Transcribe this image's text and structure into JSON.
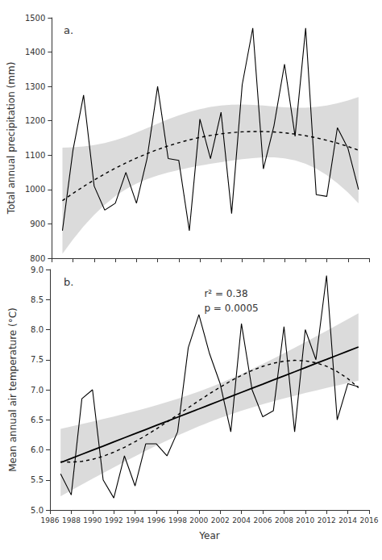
{
  "chart_data": [
    {
      "type": "line",
      "title": "a.",
      "ylabel": "Total annual precipitation (mm)",
      "x": [
        1987,
        1988,
        1989,
        1990,
        1991,
        1992,
        1993,
        1994,
        1995,
        1996,
        1997,
        1998,
        1999,
        2000,
        2001,
        2002,
        2003,
        2004,
        2005,
        2006,
        2007,
        2008,
        2009,
        2010,
        2011,
        2012,
        2013,
        2014,
        2015
      ],
      "series": [
        {
          "type": "line",
          "color": "black",
          "line_style": "dashed",
          "values": [
            967.5,
            988.8,
            1008.9,
            1027.8,
            1045.5,
            1062.1,
            1077.4,
            1091.6,
            1104.5,
            1116.3,
            1126.9,
            1136.3,
            1144.6,
            1151.6,
            1157.4,
            1162.1,
            1165.6,
            1167.8,
            1168.9,
            1168.8,
            1167.6,
            1165.1,
            1161.4,
            1156.6,
            1150.6,
            1143.3,
            1134.9,
            1125.3,
            1114.5
          ]
        },
        {
          "type": "line",
          "color": "black",
          "line_style": "solid",
          "values": [
            880,
            1115,
            1275,
            1010,
            940,
            960,
            1050,
            960,
            1090,
            1300,
            1090,
            1085,
            880,
            1205,
            1090,
            1225,
            930,
            1305,
            1470,
            1060,
            1185,
            1365,
            1155,
            1470,
            985,
            980,
            1180,
            1120,
            1000
          ]
        }
      ],
      "band": {
        "color": "#cccccc",
        "lower": [
          813.0,
          854.7,
          892.6,
          926.3,
          955.7,
          980.6,
          1001.0,
          1017.4,
          1030.4,
          1040.9,
          1049.5,
          1056.9,
          1063.4,
          1069.3,
          1074.7,
          1079.8,
          1084.4,
          1088.4,
          1091.5,
          1093.4,
          1093.4,
          1090.9,
          1085.0,
          1075.1,
          1060.7,
          1041.8,
          1018.6,
          991.2,
          960.0
        ],
        "upper": [
          1122.0,
          1122.9,
          1125.2,
          1129.3,
          1135.4,
          1143.6,
          1153.8,
          1165.8,
          1178.7,
          1191.8,
          1204.4,
          1215.8,
          1225.8,
          1233.9,
          1240.2,
          1244.4,
          1246.8,
          1247.3,
          1246.4,
          1244.3,
          1241.7,
          1239.3,
          1237.8,
          1238.1,
          1240.4,
          1244.8,
          1251.3,
          1259.4,
          1269.1
        ]
      },
      "xlim": [
        1986,
        2016
      ],
      "xticks": [
        1986,
        1988,
        1990,
        1992,
        1994,
        1996,
        1998,
        2000,
        2002,
        2004,
        2006,
        2008,
        2010,
        2012,
        2014,
        2016
      ],
      "ylim": [
        800,
        1500
      ],
      "yticks": [
        800,
        900,
        1000,
        1100,
        1200,
        1300,
        1400,
        1500
      ],
      "grid": false,
      "tick_labels": "y"
    },
    {
      "type": "line",
      "title": "b.",
      "xlabel": "Year",
      "ylabel": "Mean annual air temperature (°C)",
      "x": [
        1987,
        1988,
        1989,
        1990,
        1991,
        1992,
        1993,
        1994,
        1995,
        1996,
        1997,
        1998,
        1999,
        2000,
        2001,
        2002,
        2003,
        2004,
        2005,
        2006,
        2007,
        2008,
        2009,
        2010,
        2011,
        2012,
        2013,
        2014,
        2015
      ],
      "series": [
        {
          "type": "line",
          "color": "black",
          "line_style": "dashed",
          "values": [
            5.803,
            5.795,
            5.808,
            5.842,
            5.894,
            5.961,
            6.042,
            6.135,
            6.238,
            6.348,
            6.463,
            6.581,
            6.701,
            6.819,
            6.934,
            7.044,
            7.147,
            7.24,
            7.321,
            7.389,
            7.441,
            7.475,
            7.489,
            7.481,
            7.449,
            7.39,
            7.302,
            7.185,
            7.034
          ]
        },
        {
          "type": "line",
          "color": "black",
          "line_style": "solid",
          "values": [
            5.789,
            5.857,
            5.926,
            5.995,
            6.063,
            6.132,
            6.201,
            6.269,
            6.338,
            6.407,
            6.475,
            6.544,
            6.613,
            6.681,
            6.75,
            6.819,
            6.887,
            6.956,
            7.025,
            7.093,
            7.162,
            7.231,
            7.299,
            7.368,
            7.437,
            7.505,
            7.574,
            7.643,
            7.711
          ]
        },
        {
          "type": "line",
          "color": "black",
          "line_style": "solid",
          "values": [
            5.6,
            5.25,
            6.85,
            7.0,
            5.5,
            5.2,
            5.9,
            5.4,
            6.1,
            6.1,
            5.9,
            6.3,
            7.7,
            8.25,
            7.6,
            7.1,
            6.3,
            8.1,
            7.0,
            6.55,
            6.65,
            8.05,
            6.3,
            8.0,
            7.5,
            8.9,
            6.5,
            7.1,
            7.05
          ]
        }
      ],
      "band": {
        "color": "#cccccc",
        "lower": [
          5.228,
          5.326,
          5.423,
          5.519,
          5.615,
          5.709,
          5.803,
          5.894,
          5.984,
          6.071,
          6.156,
          6.238,
          6.317,
          6.392,
          6.462,
          6.529,
          6.592,
          6.65,
          6.706,
          6.758,
          6.808,
          6.856,
          6.901,
          6.945,
          6.988,
          7.03,
          7.071,
          7.111,
          7.151
        ],
        "upper": [
          6.349,
          6.389,
          6.429,
          6.47,
          6.512,
          6.555,
          6.599,
          6.644,
          6.692,
          6.742,
          6.794,
          6.85,
          6.908,
          6.971,
          7.038,
          7.108,
          7.183,
          7.262,
          7.344,
          7.429,
          7.516,
          7.606,
          7.697,
          7.791,
          7.885,
          7.981,
          8.077,
          8.174,
          8.272
        ]
      },
      "annotations": [
        {
          "text": "r² = 0.38\np = 0.0005",
          "x": 2000.5,
          "y": 8.72
        }
      ],
      "xlim": [
        1986,
        2016
      ],
      "xticks": [
        1986,
        1988,
        1990,
        1992,
        1994,
        1996,
        1998,
        2000,
        2002,
        2004,
        2006,
        2008,
        2010,
        2012,
        2014,
        2016
      ],
      "ylim": [
        5.0,
        9.0
      ],
      "yticks": [
        {
          "value": 5.0,
          "label": "5.0"
        },
        5.5,
        {
          "value": 6.0,
          "label": "6.0"
        },
        6.5,
        {
          "value": 7.0,
          "label": "7.0"
        },
        7.5,
        {
          "value": 8.0,
          "label": "8.0"
        },
        8.5,
        {
          "value": 9.0,
          "label": "9.0"
        }
      ],
      "grid": false
    }
  ]
}
